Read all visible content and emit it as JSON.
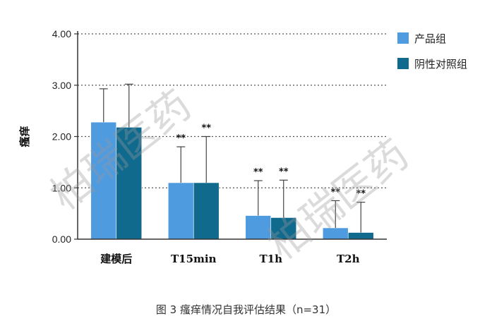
{
  "chart_data": {
    "type": "bar",
    "categories": [
      "建模后",
      "T15min",
      "T1h",
      "T2h"
    ],
    "series": [
      {
        "name": "产品组",
        "color": "#4f9be0",
        "values": [
          2.28,
          1.1,
          0.46,
          0.22
        ],
        "errors": [
          0.65,
          0.7,
          0.68,
          0.53
        ],
        "significance": [
          "",
          "**",
          "**",
          "**"
        ]
      },
      {
        "name": "阴性对照组",
        "color": "#0f6a8e",
        "values": [
          2.18,
          1.1,
          0.42,
          0.13
        ],
        "errors": [
          0.84,
          0.9,
          0.73,
          0.59
        ],
        "significance": [
          "",
          "**",
          "**",
          "**"
        ]
      }
    ],
    "ylabel": "瘙痒",
    "ylim": [
      0,
      4
    ],
    "yticks": [
      "0.00",
      "1.00",
      "2.00",
      "3.00",
      "4.00"
    ],
    "grid": "dotted horizontal",
    "legend_position": "top-right",
    "caption": "图 3  瘙痒情况自我评估结果（n=31）",
    "watermark": "柏瑞医药"
  }
}
